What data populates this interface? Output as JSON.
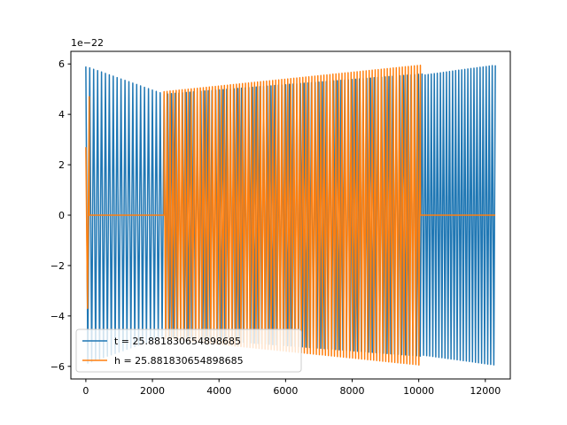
{
  "chart_data": {
    "type": "line",
    "xlim": [
      -450,
      12750
    ],
    "ylim": [
      -6.5,
      6.5
    ],
    "x_ticks": [
      0,
      2000,
      4000,
      6000,
      8000,
      10000,
      12000
    ],
    "y_ticks": [
      -6,
      -4,
      -2,
      0,
      2,
      4,
      6
    ],
    "x_tick_labels": [
      "0",
      "2000",
      "4000",
      "6000",
      "8000",
      "10000",
      "12000"
    ],
    "y_tick_labels": [
      "−6",
      "−4",
      "−2",
      "0",
      "2",
      "4",
      "6"
    ],
    "y_offset_label": "1e−22",
    "legend_position": "lower-left",
    "grid": false,
    "series": [
      {
        "name": "t = 25.881830654898685",
        "color": "#1f77b4",
        "segments": [
          {
            "x_start": 0,
            "x_end": 2350,
            "amp_start": 5.9,
            "amp_end": 4.8,
            "cycles": 20
          },
          {
            "x_start": 2350,
            "x_end": 10100,
            "amp_start": 4.8,
            "amp_end": 5.6,
            "cycles": 70
          },
          {
            "x_start": 10100,
            "x_end": 12300,
            "amp_start": 5.55,
            "amp_end": 5.95,
            "cycles": 24
          }
        ]
      },
      {
        "name": "h = 25.881830654898685",
        "color": "#ff7f0e",
        "segments": [
          {
            "x_start": 0,
            "x_end": 100,
            "amp_start": 2.7,
            "amp_end": 4.7,
            "cycles": 1
          },
          {
            "x_start": 100,
            "x_end": 2350,
            "amp_start": 0,
            "amp_end": 0,
            "cycles": 0
          },
          {
            "x_start": 2350,
            "x_end": 10050,
            "amp_start": 4.9,
            "amp_end": 5.95,
            "cycles": 85
          },
          {
            "x_start": 10050,
            "x_end": 12300,
            "amp_start": 0,
            "amp_end": 0,
            "cycles": 0
          }
        ]
      }
    ],
    "legend": {
      "entries": [
        "t = 25.881830654898685",
        "h = 25.881830654898685"
      ]
    }
  }
}
